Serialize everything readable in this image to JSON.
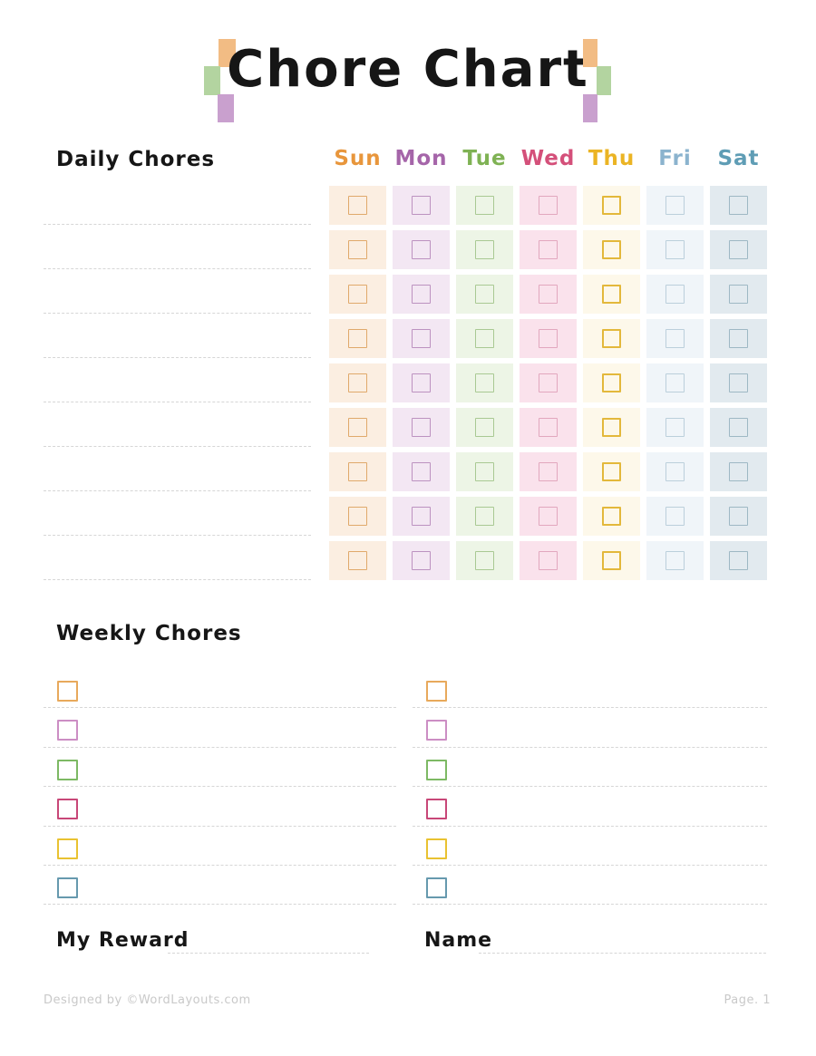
{
  "page": {
    "title": "Chore Chart"
  },
  "decoration": {
    "orange": "#F2BC84",
    "green": "#B3D4A0",
    "purple": "#C9A0CE"
  },
  "daily": {
    "heading": "Daily Chores",
    "rows": 9,
    "days": [
      {
        "label": "Sun",
        "color": "#E8963C",
        "bg": "#FBEEE1",
        "box": "#E0A96B",
        "bold": false
      },
      {
        "label": "Mon",
        "color": "#A565A9",
        "bg": "#F3E7F3",
        "box": "#BC92C0",
        "bold": false
      },
      {
        "label": "Tue",
        "color": "#7FB254",
        "bg": "#EDF5E6",
        "box": "#A9C993",
        "bold": false
      },
      {
        "label": "Wed",
        "color": "#D4507A",
        "bg": "#FAE2EC",
        "box": "#E2A7BE",
        "bold": false
      },
      {
        "label": "Thu",
        "color": "#EBB424",
        "bg": "#FDF8EA",
        "box": "#E3B83B",
        "bold": true
      },
      {
        "label": "Fri",
        "color": "#8BB3CE",
        "bg": "#F0F5F9",
        "box": "#BBCFDB",
        "bold": false
      },
      {
        "label": "Sat",
        "color": "#5F9DB5",
        "bg": "#E2EAEF",
        "box": "#9EB8C4",
        "bold": false
      }
    ]
  },
  "weekly": {
    "heading": "Weekly Chores",
    "items_per_column": 6,
    "item_colors": [
      "#E8A95C",
      "#CC8EC4",
      "#7DB964",
      "#C84778",
      "#E9C231",
      "#6699AE"
    ]
  },
  "fields": {
    "reward_label": "My Reward",
    "name_label": "Name"
  },
  "footer": {
    "credit": "Designed by ©WordLayouts.com",
    "page": "Page. 1"
  }
}
